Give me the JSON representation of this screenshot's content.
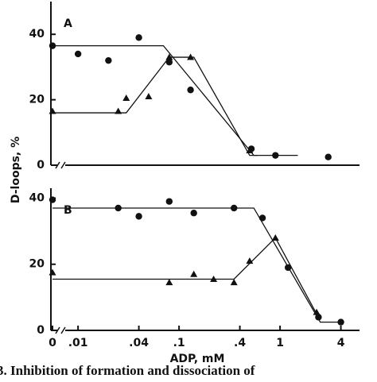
{
  "chart_data": [
    {
      "type": "scatter",
      "label": "A",
      "ylabel": "D-loops, %",
      "log_x": true,
      "xlim": [
        0.0072,
        5.9
      ],
      "ylim": [
        0,
        50
      ],
      "yticks": [
        0,
        20,
        40
      ],
      "series": [
        {
          "marker": "circle",
          "color": "#111",
          "x": [
            0,
            0.01,
            0.02,
            0.04,
            0.08,
            0.13,
            0.52,
            0.9,
            3
          ],
          "values": [
            36.5,
            34,
            32,
            39,
            31.5,
            23,
            5,
            3,
            2.5
          ],
          "fit_x": [
            0,
            0.07,
            0.55,
            1.5
          ],
          "fit_y": [
            36.5,
            36.5,
            3,
            3
          ]
        },
        {
          "marker": "triangle",
          "color": "#111",
          "x": [
            0,
            0.025,
            0.03,
            0.05,
            0.08,
            0.13,
            0.5
          ],
          "values": [
            16.5,
            16.5,
            20.5,
            21,
            33,
            33,
            4.5
          ],
          "fit_x": [
            0,
            0.03,
            0.08,
            0.14,
            0.5,
            0.6
          ],
          "fit_y": [
            16,
            16,
            33,
            33,
            3,
            3
          ]
        }
      ]
    },
    {
      "type": "scatter",
      "label": "B",
      "xlabel": "ADP,  mM",
      "log_x": true,
      "xlim": [
        0.0072,
        5.9
      ],
      "ylim": [
        0,
        43
      ],
      "yticks": [
        0,
        20,
        40
      ],
      "xticks": [
        0,
        {
          "value": 0.01,
          "label": ".01"
        },
        {
          "value": 0.04,
          "label": ".04"
        },
        {
          "value": 0.1,
          "label": ".1"
        },
        {
          "value": 0.4,
          "label": ".4"
        },
        1,
        4
      ],
      "series": [
        {
          "marker": "circle",
          "color": "#111",
          "x": [
            0,
            0.025,
            0.04,
            0.08,
            0.14,
            0.35,
            0.67,
            1.2,
            2.4,
            4
          ],
          "values": [
            39.5,
            37,
            34.5,
            39,
            35.5,
            37,
            34,
            19,
            4,
            2.5
          ],
          "fit_x": [
            0,
            0.55,
            2.5,
            4
          ],
          "fit_y": [
            37,
            37,
            2.5,
            2.5
          ]
        },
        {
          "marker": "triangle",
          "color": "#111",
          "x": [
            0,
            0.08,
            0.14,
            0.22,
            0.35,
            0.5,
            0.9,
            2.3
          ],
          "values": [
            17.5,
            14.5,
            17,
            15.5,
            14.5,
            21,
            28,
            5.5
          ],
          "fit_x": [
            0,
            0.35,
            0.9,
            2.3
          ],
          "fit_y": [
            15.5,
            15.5,
            28,
            5
          ]
        }
      ]
    }
  ],
  "caption": "3. Inhibition of formation and dissociation of"
}
